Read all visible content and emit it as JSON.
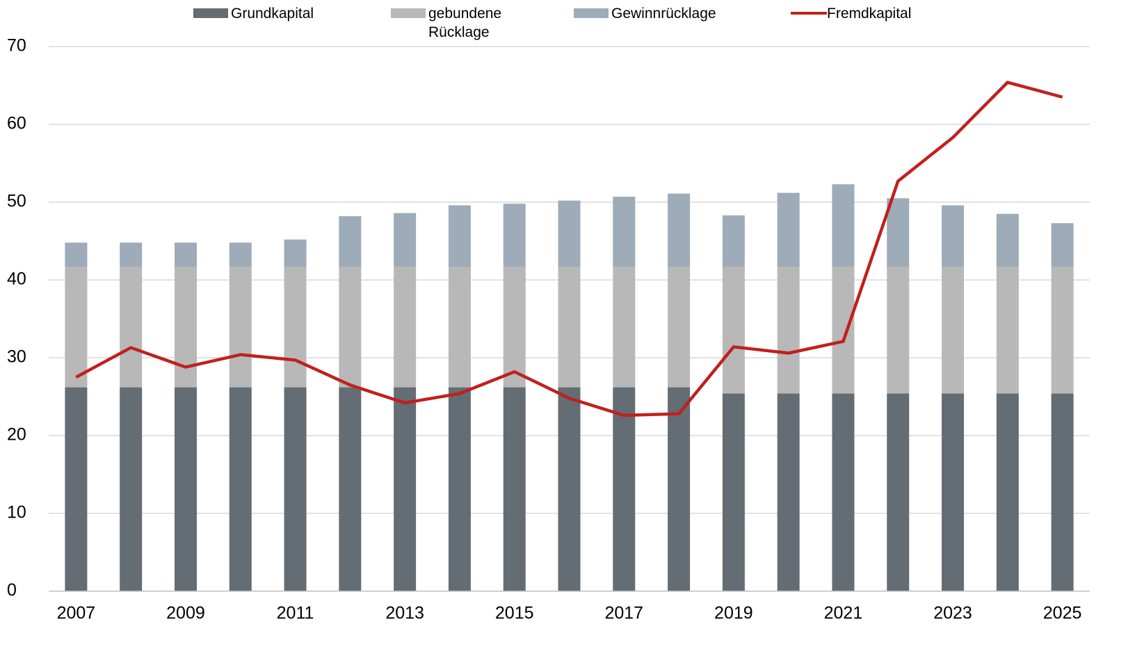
{
  "chart_data": {
    "type": "bar",
    "categories": [
      "2007",
      null,
      "2009",
      null,
      "2011",
      null,
      "2013",
      null,
      "2015",
      null,
      "2017",
      null,
      "2019",
      null,
      "2021",
      null,
      "2023",
      null,
      "2025"
    ],
    "series": [
      {
        "name": "Grundkapital",
        "color": "#646c74",
        "type": "bar",
        "values": [
          26.2,
          26.2,
          26.2,
          26.2,
          26.2,
          26.2,
          26.2,
          26.2,
          26.2,
          26.2,
          26.2,
          26.2,
          25.4,
          25.4,
          25.4,
          25.4,
          25.4,
          25.4,
          25.4
        ]
      },
      {
        "name": "gebundene Rücklage",
        "color": "#b8b8b8",
        "type": "bar",
        "values": [
          15.5,
          15.5,
          15.5,
          15.5,
          15.5,
          15.5,
          15.5,
          15.5,
          15.5,
          15.5,
          15.5,
          15.5,
          16.3,
          16.3,
          16.3,
          16.3,
          16.3,
          16.3,
          16.3
        ]
      },
      {
        "name": "Gewinnrücklage",
        "color": "#9eabb8",
        "type": "bar",
        "values": [
          3.1,
          3.1,
          3.1,
          3.1,
          3.5,
          6.5,
          6.9,
          7.9,
          8.1,
          8.5,
          9.0,
          9.4,
          6.6,
          9.5,
          10.6,
          8.8,
          7.9,
          6.8,
          5.6
        ]
      },
      {
        "name": "Fremdkapital",
        "color": "#c0201e",
        "type": "line",
        "values": [
          27.5,
          31.3,
          28.8,
          30.4,
          29.7,
          26.5,
          24.2,
          25.4,
          28.2,
          24.8,
          22.6,
          22.8,
          31.4,
          30.6,
          32.1,
          52.7,
          58.3,
          65.4,
          63.5
        ]
      }
    ],
    "ylim": [
      0,
      70
    ],
    "yticks": [
      0,
      10,
      20,
      30,
      40,
      50,
      60,
      70
    ],
    "grid": true
  }
}
